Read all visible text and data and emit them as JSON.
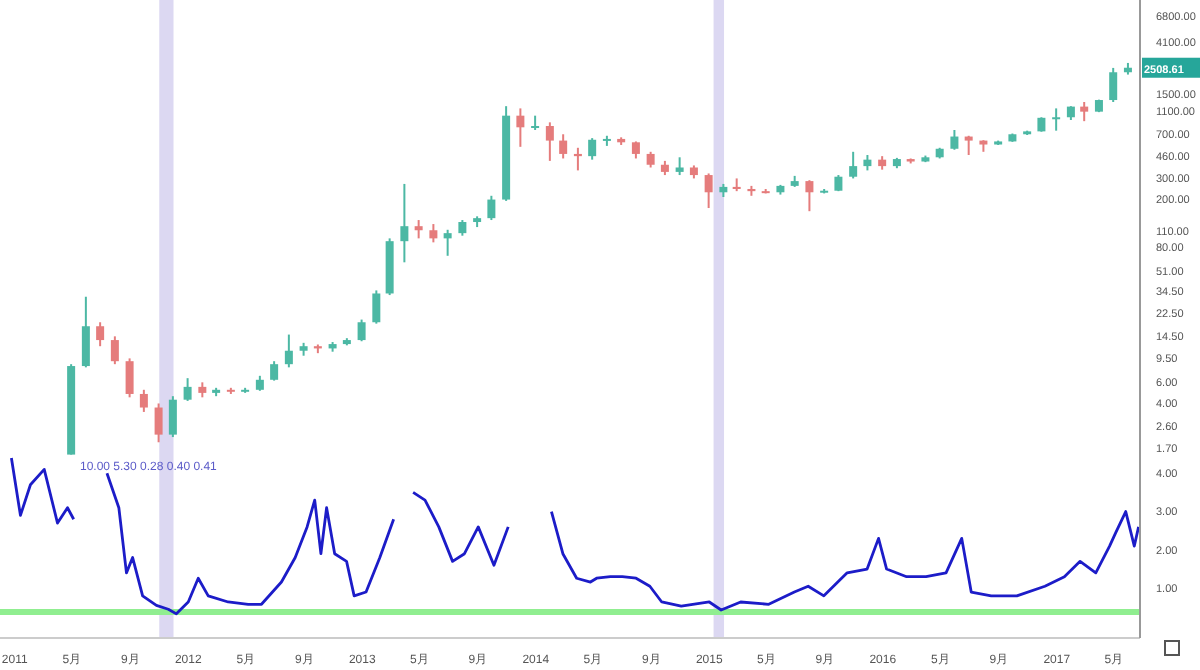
{
  "chart_data": [
    {
      "type": "candlestick",
      "log": true,
      "tick_labels": "y",
      "x": [
        "2011-05",
        "2011-06",
        "2011-07",
        "2011-08",
        "2011-09",
        "2011-10",
        "2011-11",
        "2011-12",
        "2012-01",
        "2012-02",
        "2012-03",
        "2012-04",
        "2012-05",
        "2012-06",
        "2012-07",
        "2012-08",
        "2012-09",
        "2012-10",
        "2012-11",
        "2012-12",
        "2013-01",
        "2013-02",
        "2013-03",
        "2013-04",
        "2013-05",
        "2013-06",
        "2013-07",
        "2013-08",
        "2013-09",
        "2013-10",
        "2013-11",
        "2013-12",
        "2014-01",
        "2014-02",
        "2014-03",
        "2014-04",
        "2014-05",
        "2014-06",
        "2014-07",
        "2014-08",
        "2014-09",
        "2014-10",
        "2014-11",
        "2014-12",
        "2015-01",
        "2015-02",
        "2015-03",
        "2015-04",
        "2015-05",
        "2015-06",
        "2015-07",
        "2015-08",
        "2015-09",
        "2015-10",
        "2015-11",
        "2015-12",
        "2016-01",
        "2016-02",
        "2016-03",
        "2016-04",
        "2016-05",
        "2016-06",
        "2016-07",
        "2016-08",
        "2016-09",
        "2016-10",
        "2016-11",
        "2016-12",
        "2017-01",
        "2017-02",
        "2017-03",
        "2017-04",
        "2017-05",
        "2017-06"
      ],
      "ohlc": [
        [
          1.5,
          8.5,
          1.5,
          8.2
        ],
        [
          8.2,
          31,
          8,
          17.6
        ],
        [
          17.6,
          19,
          12,
          13.5
        ],
        [
          13.5,
          14.5,
          8.5,
          9
        ],
        [
          9,
          9.5,
          4.5,
          4.8
        ],
        [
          4.8,
          5.2,
          3.4,
          3.7
        ],
        [
          3.7,
          4,
          1.9,
          2.2
        ],
        [
          2.2,
          4.6,
          2.1,
          4.3
        ],
        [
          4.3,
          6.5,
          4.2,
          5.5
        ],
        [
          5.5,
          6,
          4.5,
          4.9
        ],
        [
          4.9,
          5.4,
          4.6,
          5.2
        ],
        [
          5.2,
          5.4,
          4.8,
          5.1
        ],
        [
          5.1,
          5.4,
          4.9,
          5.2
        ],
        [
          5.2,
          6.8,
          5.1,
          6.3
        ],
        [
          6.3,
          9,
          6.2,
          8.5
        ],
        [
          8.5,
          15,
          8,
          11
        ],
        [
          11,
          12.8,
          10,
          12
        ],
        [
          12,
          12.4,
          10.5,
          11.5
        ],
        [
          11.5,
          13,
          10.8,
          12.5
        ],
        [
          12.5,
          14,
          12.2,
          13.5
        ],
        [
          13.5,
          20,
          13.2,
          19
        ],
        [
          19,
          35,
          18.5,
          33
        ],
        [
          33,
          95,
          32,
          90
        ],
        [
          90,
          270,
          60,
          120
        ],
        [
          120,
          135,
          95,
          111
        ],
        [
          111,
          125,
          88,
          95
        ],
        [
          95,
          112,
          68,
          105
        ],
        [
          105,
          135,
          100,
          130
        ],
        [
          130,
          145,
          118,
          140
        ],
        [
          140,
          215,
          135,
          200
        ],
        [
          200,
          1200,
          195,
          1000
        ],
        [
          1000,
          1150,
          550,
          800
        ],
        [
          800,
          1000,
          760,
          820
        ],
        [
          820,
          880,
          420,
          620
        ],
        [
          620,
          700,
          440,
          480
        ],
        [
          480,
          540,
          350,
          460
        ],
        [
          460,
          650,
          430,
          630
        ],
        [
          630,
          680,
          560,
          640
        ],
        [
          640,
          660,
          570,
          600
        ],
        [
          600,
          610,
          440,
          480
        ],
        [
          480,
          500,
          370,
          390
        ],
        [
          390,
          420,
          320,
          340
        ],
        [
          340,
          450,
          320,
          370
        ],
        [
          370,
          385,
          300,
          320
        ],
        [
          320,
          330,
          170,
          230
        ],
        [
          230,
          270,
          210,
          255
        ],
        [
          255,
          300,
          235,
          245
        ],
        [
          245,
          260,
          215,
          235
        ],
        [
          235,
          245,
          225,
          230
        ],
        [
          230,
          265,
          220,
          260
        ],
        [
          260,
          315,
          255,
          285
        ],
        [
          285,
          290,
          160,
          230
        ],
        [
          230,
          245,
          225,
          237
        ],
        [
          237,
          320,
          235,
          310
        ],
        [
          310,
          500,
          300,
          380
        ],
        [
          380,
          470,
          350,
          430
        ],
        [
          430,
          460,
          355,
          380
        ],
        [
          380,
          445,
          365,
          435
        ],
        [
          435,
          440,
          400,
          415
        ],
        [
          415,
          465,
          410,
          450
        ],
        [
          450,
          540,
          440,
          530
        ],
        [
          530,
          760,
          520,
          670
        ],
        [
          670,
          680,
          470,
          620
        ],
        [
          620,
          625,
          500,
          575
        ],
        [
          575,
          620,
          570,
          610
        ],
        [
          610,
          710,
          605,
          700
        ],
        [
          700,
          750,
          690,
          740
        ],
        [
          740,
          970,
          735,
          960
        ],
        [
          960,
          1150,
          750,
          970
        ],
        [
          970,
          1200,
          920,
          1190
        ],
        [
          1190,
          1300,
          900,
          1080
        ],
        [
          1080,
          1360,
          1070,
          1350
        ],
        [
          1350,
          2500,
          1300,
          2300
        ],
        [
          2300,
          2750,
          2200,
          2508.61
        ]
      ],
      "colors": [
        "#4cb8a4",
        "#4cb8a4",
        "#e57c7c",
        "#e57c7c",
        "#e57c7c",
        "#e57c7c",
        "#e57c7c",
        "#4cb8a4",
        "#4cb8a4",
        "#e57c7c",
        "#4cb8a4",
        "#e57c7c",
        "#4cb8a4",
        "#4cb8a4",
        "#4cb8a4",
        "#4cb8a4",
        "#4cb8a4",
        "#e57c7c",
        "#4cb8a4",
        "#4cb8a4",
        "#4cb8a4",
        "#4cb8a4",
        "#4cb8a4",
        "#4cb8a4",
        "#e57c7c",
        "#e57c7c",
        "#4cb8a4",
        "#4cb8a4",
        "#4cb8a4",
        "#4cb8a4",
        "#4cb8a4",
        "#e57c7c",
        "#4cb8a4",
        "#e57c7c",
        "#e57c7c",
        "#e57c7c",
        "#4cb8a4",
        "#4cb8a4",
        "#e57c7c",
        "#e57c7c",
        "#e57c7c",
        "#e57c7c",
        "#4cb8a4",
        "#e57c7c",
        "#e57c7c",
        "#4cb8a4",
        "#e57c7c",
        "#e57c7c",
        "#e57c7c",
        "#4cb8a4",
        "#4cb8a4",
        "#e57c7c",
        "#4cb8a4",
        "#4cb8a4",
        "#4cb8a4",
        "#4cb8a4",
        "#e57c7c",
        "#4cb8a4",
        "#e57c7c",
        "#4cb8a4",
        "#4cb8a4",
        "#4cb8a4",
        "#e57c7c",
        "#e57c7c",
        "#4cb8a4",
        "#4cb8a4",
        "#4cb8a4",
        "#4cb8a4",
        "#4cb8a4",
        "#4cb8a4",
        "#e57c7c",
        "#4cb8a4",
        "#4cb8a4",
        "#4cb8a4"
      ],
      "xlim": [
        "2010-12-01",
        "2017-06-25"
      ],
      "ylim": [
        1.46,
        9200
      ],
      "yticks": [
        {
          "value": 6800,
          "label": "6800.00"
        },
        {
          "value": 4100,
          "label": "4100.00"
        },
        {
          "value": 1500,
          "label": "1500.00"
        },
        {
          "value": 1100,
          "label": "1100.00"
        },
        {
          "value": 700,
          "label": "700.00"
        },
        {
          "value": 460,
          "label": "460.00"
        },
        {
          "value": 300,
          "label": "300.00"
        },
        {
          "value": 200,
          "label": "200.00"
        },
        {
          "value": 110,
          "label": "110.00"
        },
        {
          "value": 80,
          "label": "80.00"
        },
        {
          "value": 51,
          "label": "51.00"
        },
        {
          "value": 34.5,
          "label": "34.50"
        },
        {
          "value": 22.5,
          "label": "22.50"
        },
        {
          "value": 14.5,
          "label": "14.50"
        },
        {
          "value": 9.5,
          "label": "9.50"
        },
        {
          "value": 6,
          "label": "6.00"
        },
        {
          "value": 4,
          "label": "4.00"
        },
        {
          "value": 2.6,
          "label": "2.60"
        },
        {
          "value": 1.7,
          "label": "1.70"
        }
      ],
      "bands": [
        {
          "axis": "x",
          "from": "2011-11-01",
          "to": "2011-12-01",
          "color": "#dcd8f2"
        },
        {
          "axis": "x",
          "from": "2015-01-10",
          "to": "2015-02-01",
          "color": "#dcd8f2"
        }
      ],
      "annotations": [
        {
          "text": "2508.61",
          "x": "2017-06",
          "y": 2508.61
        }
      ]
    },
    {
      "type": "line",
      "x": [
        "2010-12-25",
        "2011-01-13",
        "2011-02-03",
        "2011-03-04",
        "2011-04-01",
        "2011-04-22",
        "2011-05-05",
        "2011-05-13",
        "2011-06-20",
        "2011-07-14",
        "2011-08-08",
        "2011-08-24",
        "2011-09-06",
        "2011-09-27",
        "2011-10-26",
        "2011-11-20",
        "2011-12-07",
        "2012-01-01",
        "2012-01-22",
        "2012-02-12",
        "2012-03-25",
        "2012-05-06",
        "2012-06-03",
        "2012-07-15",
        "2012-08-13",
        "2012-09-07",
        "2012-09-23",
        "2012-10-06",
        "2012-10-18",
        "2012-11-04",
        "2012-11-29",
        "2012-12-15",
        "2013-01-09",
        "2013-02-07",
        "2013-03-08",
        "2013-03-20",
        "2013-04-05",
        "2013-04-18",
        "2013-05-13",
        "2013-06-11",
        "2013-07-10",
        "2013-08-04",
        "2013-09-02",
        "2013-10-05",
        "2013-11-04",
        "2013-11-15",
        "2014-01-20",
        "2014-02-03",
        "2014-02-27",
        "2014-03-28",
        "2014-04-26",
        "2014-05-09",
        "2014-06-07",
        "2014-07-02",
        "2014-07-31",
        "2014-08-29",
        "2014-09-23",
        "2014-11-03",
        "2015-01-01",
        "2015-01-26",
        "2015-03-08",
        "2015-05-06",
        "2015-06-29",
        "2015-07-28",
        "2015-08-30",
        "2015-10-18",
        "2015-11-29",
        "2015-12-23",
        "2016-01-09",
        "2016-02-20",
        "2016-04-01",
        "2016-05-13",
        "2016-06-15",
        "2016-07-05",
        "2016-08-16",
        "2016-10-09",
        "2016-12-07",
        "2017-01-17",
        "2017-02-19",
        "2017-03-24",
        "2017-04-22",
        "2017-05-05",
        "2017-05-26",
        "2017-06-13",
        "2017-06-22"
      ],
      "series": [
        {
          "color": "#1c1cc8",
          "values": [
            4.4,
            2.9,
            3.7,
            4.1,
            2.7,
            3.1,
            2.8,
            null,
            null,
            4.0,
            3.1,
            1.4,
            1.8,
            0.8,
            0.55,
            0.45,
            0.33,
            0.64,
            1.26,
            0.8,
            0.64,
            0.58,
            0.58,
            1.16,
            1.8,
            2.6,
            3.3,
            1.9,
            3.1,
            1.9,
            1.7,
            0.8,
            0.9,
            1.8,
            2.8,
            null,
            null,
            3.5,
            3.3,
            2.6,
            1.7,
            1.9,
            2.6,
            1.6,
            2.6,
            null,
            null,
            3.0,
            1.9,
            1.26,
            1.16,
            1.26,
            1.3,
            1.3,
            1.26,
            1.05,
            0.64,
            0.53,
            0.64,
            0.43,
            0.64,
            0.58,
            0.9,
            1.05,
            0.8,
            1.4,
            1.5,
            2.3,
            1.5,
            1.3,
            1.3,
            1.4,
            2.3,
            0.9,
            0.8,
            0.8,
            1.05,
            1.3,
            1.7,
            1.4,
            2.1,
            2.45,
            3.0,
            2.1,
            2.6
          ]
        }
      ],
      "marker": "none",
      "xlim": [
        "2010-12-01",
        "2017-06-25"
      ],
      "xticks": [
        {
          "value": "2011-01-01",
          "label": "2011"
        },
        {
          "value": "2011-05-01",
          "label": "5月"
        },
        {
          "value": "2011-09-01",
          "label": "9月"
        },
        {
          "value": "2012-01-01",
          "label": "2012"
        },
        {
          "value": "2012-05-01",
          "label": "5月"
        },
        {
          "value": "2012-09-01",
          "label": "9月"
        },
        {
          "value": "2013-01-01",
          "label": "2013"
        },
        {
          "value": "2013-05-01",
          "label": "5月"
        },
        {
          "value": "2013-09-01",
          "label": "9月"
        },
        {
          "value": "2014-01-01",
          "label": "2014"
        },
        {
          "value": "2014-05-01",
          "label": "5月"
        },
        {
          "value": "2014-09-01",
          "label": "9月"
        },
        {
          "value": "2015-01-01",
          "label": "2015"
        },
        {
          "value": "2015-05-01",
          "label": "5月"
        },
        {
          "value": "2015-09-01",
          "label": "9月"
        },
        {
          "value": "2016-01-01",
          "label": "2016"
        },
        {
          "value": "2016-05-01",
          "label": "5月"
        },
        {
          "value": "2016-09-01",
          "label": "9月"
        },
        {
          "value": "2017-01-01",
          "label": "2017"
        },
        {
          "value": "2017-05-01",
          "label": "5月"
        }
      ],
      "ylim": [
        -0.3,
        4.45
      ],
      "yticks": [
        {
          "value": 1,
          "label": "1.00"
        },
        {
          "value": 2,
          "label": "2.00"
        },
        {
          "value": 3,
          "label": "3.00"
        },
        {
          "value": 4,
          "label": "4.00"
        }
      ],
      "ref_lines": [
        {
          "axis": "y",
          "value": 0.38,
          "color": "#90ee90"
        }
      ],
      "bands": [
        {
          "axis": "x",
          "from": "2011-11-01",
          "to": "2011-12-01",
          "color": "#dcd8f2"
        },
        {
          "axis": "x",
          "from": "2015-01-10",
          "to": "2015-02-01",
          "color": "#dcd8f2"
        }
      ],
      "annotations": [
        "10.00 5.30 0.28 0.40 0.41"
      ]
    }
  ]
}
